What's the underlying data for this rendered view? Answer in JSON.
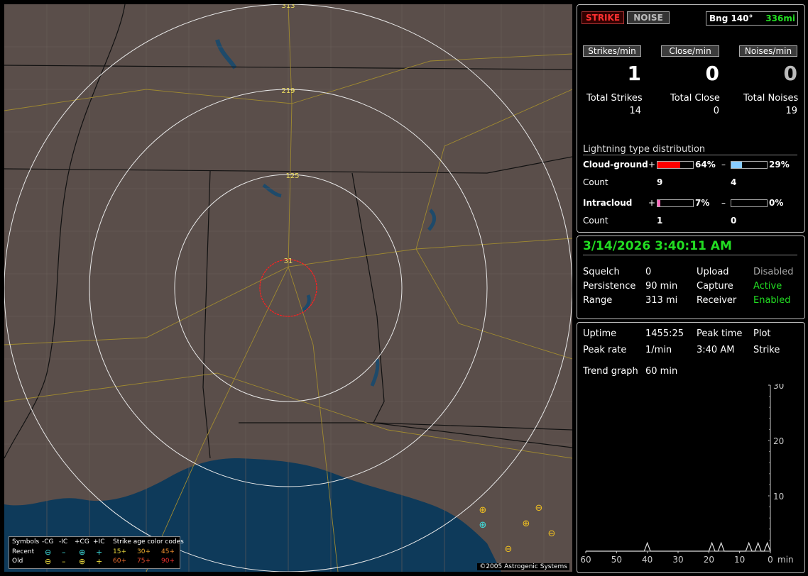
{
  "map": {
    "range_labels": [
      "313",
      "219",
      "125",
      "31"
    ],
    "copyright": "©2005 Astrogenic Systems",
    "legend": {
      "title_symbols": "Symbols",
      "headers": [
        "-CG",
        "-IC",
        "+CG",
        "+IC"
      ],
      "age_title": "Strike age color codes",
      "recent_label": "Recent",
      "old_label": "Old",
      "recent_symbols": [
        "⊖",
        "–",
        "⊕",
        "+"
      ],
      "old_symbols": [
        "⊖",
        "–",
        "⊕",
        "+"
      ],
      "recent_ages": [
        "15+",
        "30+",
        "45+"
      ],
      "old_ages": [
        "60+",
        "75+",
        "90+"
      ]
    },
    "strikes": [
      {
        "symbol": "⊕",
        "color": "#f0c020"
      },
      {
        "symbol": "⊖",
        "color": "#f0c020"
      },
      {
        "symbol": "⊕",
        "color": "#40e0e0"
      },
      {
        "symbol": "⊕",
        "color": "#f0c020"
      },
      {
        "symbol": "⊖",
        "color": "#f0c020"
      },
      {
        "symbol": "⊖",
        "color": "#f0c020"
      }
    ]
  },
  "status": {
    "strike_button": "STRIKE",
    "noise_button": "NOISE",
    "bearing_label": "Bng 140°",
    "bearing_distance": "336mi",
    "rate_headers": [
      "Strikes/min",
      "Close/min",
      "Noises/min"
    ],
    "rate_values": [
      "1",
      "0",
      "0"
    ],
    "total_labels": [
      "Total Strikes",
      "Total Close",
      "Total Noises"
    ],
    "total_values": [
      "14",
      "0",
      "19"
    ],
    "distribution_title": "Lightning type distribution",
    "cg_label": "Cloud-ground",
    "ic_label": "Intracloud",
    "count_label": "Count",
    "plus_sign": "+",
    "minus_sign": "–",
    "cg_plus_pct": "64%",
    "cg_minus_pct": "29%",
    "ic_plus_pct": "7%",
    "ic_minus_pct": "0%",
    "cg_plus_fraction": 0.64,
    "cg_minus_fraction": 0.29,
    "ic_plus_fraction": 0.07,
    "ic_minus_fraction": 0.0,
    "cg_plus_count": "9",
    "cg_minus_count": "4",
    "ic_plus_count": "1",
    "ic_minus_count": "0",
    "colors": {
      "cg_plus": "#ff0000",
      "cg_minus": "#88ccff",
      "ic_plus": "#ff66bb",
      "ic_minus": "#88ccff"
    }
  },
  "settings": {
    "datetime": "3/14/2026 3:40:11 AM",
    "squelch_label": "Squelch",
    "squelch_value": "0",
    "persistence_label": "Persistence",
    "persistence_value": "90 min",
    "range_label": "Range",
    "range_value": "313 mi",
    "upload_label": "Upload",
    "upload_value": "Disabled",
    "capture_label": "Capture",
    "capture_value": "Active",
    "receiver_label": "Receiver",
    "receiver_value": "Enabled"
  },
  "stats": {
    "uptime_label": "Uptime",
    "uptime_value": "1455:25",
    "peak_time_label": "Peak time",
    "peak_time_value": "3:40 AM",
    "plot_label": "Plot",
    "plot_value": "Strike",
    "peak_rate_label": "Peak rate",
    "peak_rate_value": "1/min",
    "trend_label": "Trend graph",
    "trend_value": "60 min"
  },
  "chart_data": {
    "type": "line",
    "xlabel": "min",
    "x_ticks": [
      "60",
      "50",
      "40",
      "30",
      "20",
      "10",
      "0"
    ],
    "y_ticks": [
      "30",
      "20",
      "10"
    ],
    "ylim": [
      0,
      30
    ],
    "xlim": [
      60,
      0
    ],
    "series": [
      {
        "x": [
          60,
          41,
          40,
          39,
          20,
          19,
          18,
          17,
          16,
          15,
          14,
          13,
          12,
          11,
          10,
          9,
          8,
          7,
          6,
          5,
          4,
          3,
          2,
          1,
          0
        ],
        "values": [
          0,
          0,
          1,
          0,
          0,
          1,
          0,
          0,
          1,
          0,
          0,
          0,
          0,
          0,
          0,
          0,
          0,
          1,
          0,
          0,
          1,
          0,
          0,
          1,
          0
        ]
      }
    ]
  }
}
